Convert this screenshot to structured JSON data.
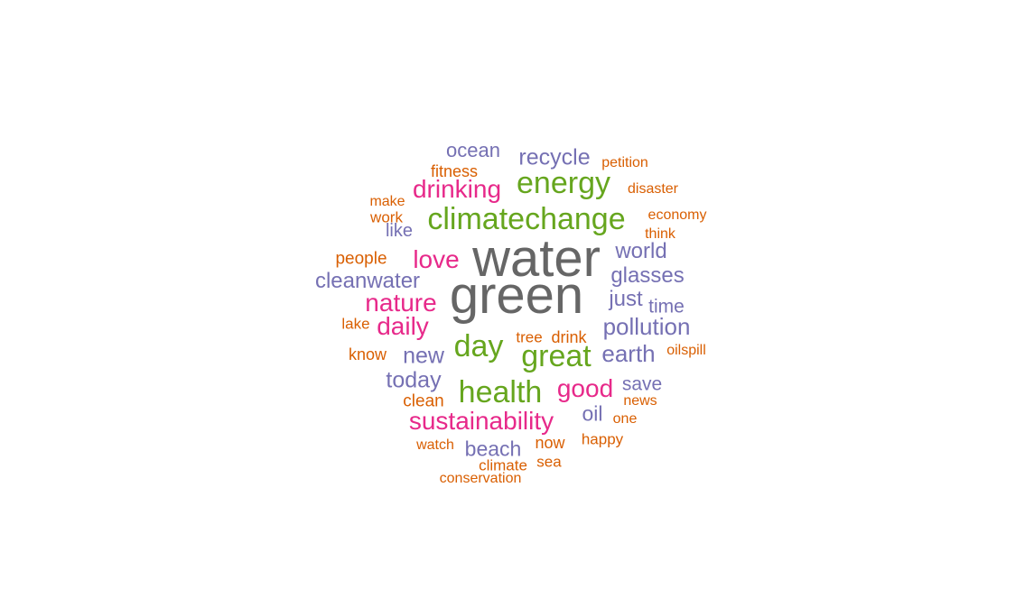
{
  "chart_data": {
    "type": "wordcloud",
    "colors": {
      "tier1": "#666666",
      "tier2": "#66a61e",
      "tier3": "#e7298a",
      "tier4": "#7570b3",
      "tier5": "#d95f02"
    },
    "words": [
      {
        "text": "water",
        "tier": 1
      },
      {
        "text": "green",
        "tier": 1
      },
      {
        "text": "climatechange",
        "tier": 2
      },
      {
        "text": "energy",
        "tier": 2
      },
      {
        "text": "day",
        "tier": 2
      },
      {
        "text": "great",
        "tier": 2
      },
      {
        "text": "health",
        "tier": 2
      },
      {
        "text": "drinking",
        "tier": 3
      },
      {
        "text": "love",
        "tier": 3
      },
      {
        "text": "nature",
        "tier": 3
      },
      {
        "text": "daily",
        "tier": 3
      },
      {
        "text": "good",
        "tier": 3
      },
      {
        "text": "sustainability",
        "tier": 3
      },
      {
        "text": "ocean",
        "tier": 4
      },
      {
        "text": "recycle",
        "tier": 4
      },
      {
        "text": "like",
        "tier": 4
      },
      {
        "text": "world",
        "tier": 4
      },
      {
        "text": "cleanwater",
        "tier": 4
      },
      {
        "text": "glasses",
        "tier": 4
      },
      {
        "text": "just",
        "tier": 4
      },
      {
        "text": "time",
        "tier": 4
      },
      {
        "text": "pollution",
        "tier": 4
      },
      {
        "text": "new",
        "tier": 4
      },
      {
        "text": "earth",
        "tier": 4
      },
      {
        "text": "today",
        "tier": 4
      },
      {
        "text": "save",
        "tier": 4
      },
      {
        "text": "oil",
        "tier": 4
      },
      {
        "text": "beach",
        "tier": 4
      },
      {
        "text": "fitness",
        "tier": 5
      },
      {
        "text": "petition",
        "tier": 5
      },
      {
        "text": "make",
        "tier": 5
      },
      {
        "text": "disaster",
        "tier": 5
      },
      {
        "text": "work",
        "tier": 5
      },
      {
        "text": "economy",
        "tier": 5
      },
      {
        "text": "think",
        "tier": 5
      },
      {
        "text": "people",
        "tier": 5
      },
      {
        "text": "lake",
        "tier": 5
      },
      {
        "text": "tree",
        "tier": 5
      },
      {
        "text": "drink",
        "tier": 5
      },
      {
        "text": "know",
        "tier": 5
      },
      {
        "text": "oilspill",
        "tier": 5
      },
      {
        "text": "clean",
        "tier": 5
      },
      {
        "text": "news",
        "tier": 5
      },
      {
        "text": "one",
        "tier": 5
      },
      {
        "text": "watch",
        "tier": 5
      },
      {
        "text": "now",
        "tier": 5
      },
      {
        "text": "happy",
        "tier": 5
      },
      {
        "text": "climate",
        "tier": 5
      },
      {
        "text": "sea",
        "tier": 5
      },
      {
        "text": "conservation",
        "tier": 5
      }
    ]
  }
}
